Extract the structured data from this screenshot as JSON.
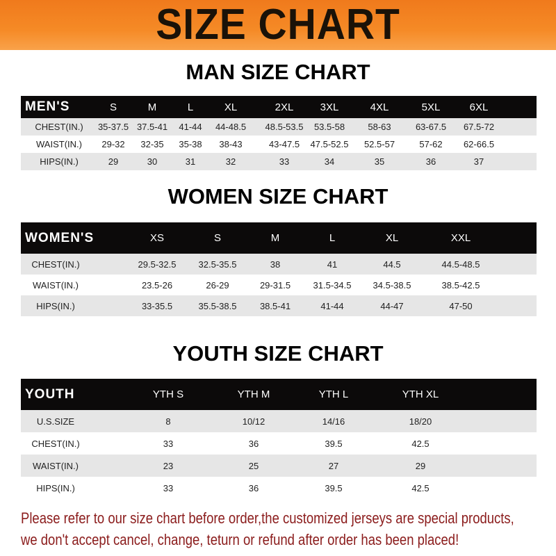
{
  "banner": {
    "title": "SIZE CHART",
    "color": "#f58a26"
  },
  "tables": [
    {
      "title": "MAN SIZE CHART",
      "header": [
        "MEN'S",
        "S",
        "M",
        "L",
        "XL",
        "2XL",
        "3XL",
        "4XL",
        "5XL",
        "6XL"
      ],
      "rows": [
        [
          "CHEST(IN.)",
          "35-37.5",
          "37.5-41",
          "41-44",
          "44-48.5",
          "48.5-53.5",
          "53.5-58",
          "58-63",
          "63-67.5",
          "67.5-72"
        ],
        [
          "WAIST(IN.)",
          "29-32",
          "32-35",
          "35-38",
          "38-43",
          "43-47.5",
          "47.5-52.5",
          "52.5-57",
          "57-62",
          "62-66.5"
        ],
        [
          "HIPS(IN.)",
          "29",
          "30",
          "31",
          "32",
          "33",
          "34",
          "35",
          "36",
          "37"
        ]
      ]
    },
    {
      "title": "WOMEN SIZE CHART",
      "header": [
        "WOMEN'S",
        "XS",
        "S",
        "M",
        "L",
        "XL",
        "XXL"
      ],
      "rows": [
        [
          "CHEST(IN.)",
          "29.5-32.5",
          "32.5-35.5",
          "38",
          "41",
          "44.5",
          "44.5-48.5"
        ],
        [
          "WAIST(IN.)",
          "23.5-26",
          "26-29",
          "29-31.5",
          "31.5-34.5",
          "34.5-38.5",
          "38.5-42.5"
        ],
        [
          "HIPS(IN.)",
          "33-35.5",
          "35.5-38.5",
          "38.5-41",
          "41-44",
          "44-47",
          "47-50"
        ]
      ]
    },
    {
      "title": "YOUTH SIZE CHART",
      "header": [
        "YOUTH",
        "YTH S",
        "YTH M",
        "YTH L",
        "YTH XL"
      ],
      "rows": [
        [
          "U.S.SIZE",
          "8",
          "10/12",
          "14/16",
          "18/20"
        ],
        [
          "CHEST(IN.)",
          "33",
          "36",
          "39.5",
          "42.5"
        ],
        [
          "WAIST(IN.)",
          "23",
          "25",
          "27",
          "29"
        ],
        [
          "HIPS(IN.)",
          "33",
          "36",
          "39.5",
          "42.5"
        ]
      ]
    }
  ],
  "notice": {
    "line1": "Please refer to our size chart before order,the customized jerseys are special products,",
    "line2": "we don't accept cancel, change, teturn or refund after order has been placed!",
    "color": "#8b1c1c"
  }
}
